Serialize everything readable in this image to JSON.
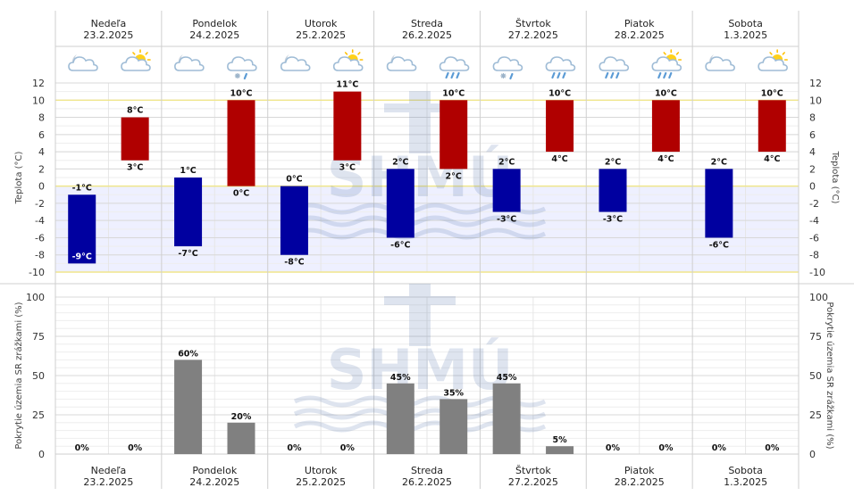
{
  "days": [
    {
      "name": "Nedeľa",
      "date": "23.2.2025"
    },
    {
      "name": "Pondelok",
      "date": "24.2.2025"
    },
    {
      "name": "Utorok",
      "date": "25.2.2025"
    },
    {
      "name": "Streda",
      "date": "26.2.2025"
    },
    {
      "name": "Štvrtok",
      "date": "27.2.2025"
    },
    {
      "name": "Piatok",
      "date": "28.2.2025"
    },
    {
      "name": "Sobota",
      "date": "1.3.2025"
    }
  ],
  "weather_icons": [
    [
      "night-cloudy-icon",
      "sun-cloudy-icon"
    ],
    [
      "night-cloudy-icon",
      "snow-cloud-icon"
    ],
    [
      "night-cloudy-icon",
      "sun-cloudy-icon"
    ],
    [
      "night-cloudy-icon",
      "rain-cloud-icon"
    ],
    [
      "snow-cloud-icon",
      "rain-cloud-icon"
    ],
    [
      "rain-cloud-icon",
      "sun-rain-cloud-icon"
    ],
    [
      "night-cloudy-icon",
      "sun-cloudy-icon"
    ]
  ],
  "watermark": "SHMÚ",
  "colors": {
    "min_bar": "#0000a0",
    "max_bar": "#b00000",
    "precip_bar": "#808080",
    "freeze_zone": "#eef0ff",
    "limit_line": "#f0e68c"
  },
  "chart_data": [
    {
      "type": "bar",
      "ylabel": "Teplota (°C)",
      "ylim": [
        -10,
        12
      ],
      "yticks": [
        -10,
        -8,
        -6,
        -4,
        -2,
        0,
        2,
        4,
        6,
        8,
        10,
        12
      ],
      "series": [
        {
          "name": "",
          "periods": "night",
          "values": [
            [
              -9,
              -1
            ],
            [
              -7,
              1
            ],
            [
              -8,
              0
            ],
            [
              -6,
              2
            ],
            [
              -3,
              2
            ],
            [
              -3,
              2
            ],
            [
              -6,
              2
            ]
          ]
        },
        {
          "name": "",
          "periods": "day",
          "values": [
            [
              3,
              8
            ],
            [
              0,
              10
            ],
            [
              3,
              11
            ],
            [
              2,
              10
            ],
            [
              4,
              10
            ],
            [
              4,
              10
            ],
            [
              4,
              10
            ]
          ]
        }
      ],
      "labels": {
        "night": [
          [
            "-9°C",
            "-1°C"
          ],
          [
            "-7°C",
            "1°C"
          ],
          [
            "-8°C",
            "0°C"
          ],
          [
            "-6°C",
            "2°C"
          ],
          [
            "-3°C",
            "2°C"
          ],
          [
            "-3°C",
            "2°C"
          ],
          [
            "-6°C",
            "2°C"
          ]
        ],
        "day": [
          [
            "3°C",
            "8°C"
          ],
          [
            "0°C",
            "10°C"
          ],
          [
            "3°C",
            "11°C"
          ],
          [
            "2°C",
            "10°C"
          ],
          [
            "4°C",
            "10°C"
          ],
          [
            "4°C",
            "10°C"
          ],
          [
            "4°C",
            "10°C"
          ]
        ]
      }
    },
    {
      "type": "bar",
      "ylabel": "Pokrytie územia SR zrážkami (%)",
      "ylim": [
        0,
        100
      ],
      "yticks": [
        0,
        25,
        50,
        75,
        100
      ],
      "values": [
        [
          0,
          0
        ],
        [
          60,
          20
        ],
        [
          0,
          0
        ],
        [
          45,
          35
        ],
        [
          45,
          5
        ],
        [
          0,
          0
        ],
        [
          0,
          0
        ]
      ],
      "labels": [
        [
          "0%",
          "0%"
        ],
        [
          "60%",
          "20%"
        ],
        [
          "0%",
          "0%"
        ],
        [
          "45%",
          "35%"
        ],
        [
          "45%",
          "5%"
        ],
        [
          "0%",
          "0%"
        ],
        [
          "0%",
          "0%"
        ]
      ]
    }
  ]
}
